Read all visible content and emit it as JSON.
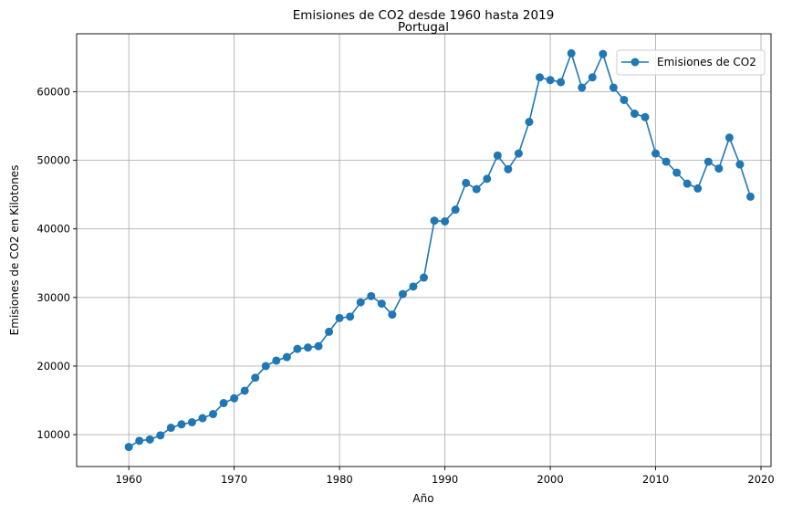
{
  "chart_data": {
    "type": "line",
    "title": "Emisiones de CO2 desde 1960 hasta 2019",
    "subtitle": "Portugal",
    "xlabel": "Año",
    "ylabel": "Emisiones de CO2 en Kilotones",
    "xlim": [
      1955.05,
      2020.95
    ],
    "ylim": [
      5350,
      68450
    ],
    "x_ticks": [
      1960,
      1970,
      1980,
      1990,
      2000,
      2010,
      2020
    ],
    "y_ticks": [
      10000,
      20000,
      30000,
      40000,
      50000,
      60000
    ],
    "grid": true,
    "legend_position": "top-right",
    "series": [
      {
        "name": "Emisiones de CO2",
        "color": "#1f77b4",
        "marker": "circle",
        "x": [
          1960,
          1961,
          1962,
          1963,
          1964,
          1965,
          1966,
          1967,
          1968,
          1969,
          1970,
          1971,
          1972,
          1973,
          1974,
          1975,
          1976,
          1977,
          1978,
          1979,
          1980,
          1981,
          1982,
          1983,
          1984,
          1985,
          1986,
          1987,
          1988,
          1989,
          1990,
          1991,
          1992,
          1993,
          1994,
          1995,
          1996,
          1997,
          1998,
          1999,
          2000,
          2001,
          2002,
          2003,
          2004,
          2005,
          2006,
          2007,
          2008,
          2009,
          2010,
          2011,
          2012,
          2013,
          2014,
          2015,
          2016,
          2017,
          2018,
          2019
        ],
        "y": [
          8200,
          9100,
          9300,
          9900,
          11000,
          11500,
          11800,
          12400,
          13000,
          14600,
          15300,
          16400,
          18300,
          20000,
          20800,
          21300,
          22500,
          22700,
          22900,
          25000,
          27000,
          27200,
          29300,
          30200,
          29100,
          27500,
          30500,
          31600,
          32900,
          41200,
          41100,
          42800,
          46700,
          45800,
          47300,
          50700,
          48700,
          51000,
          55600,
          62100,
          61700,
          61400,
          65600,
          60600,
          62100,
          65500,
          60600,
          58800,
          56800,
          56300,
          51000,
          49800,
          48200,
          46600,
          45900,
          49800,
          48800,
          53300,
          49400,
          44700
        ]
      }
    ]
  }
}
